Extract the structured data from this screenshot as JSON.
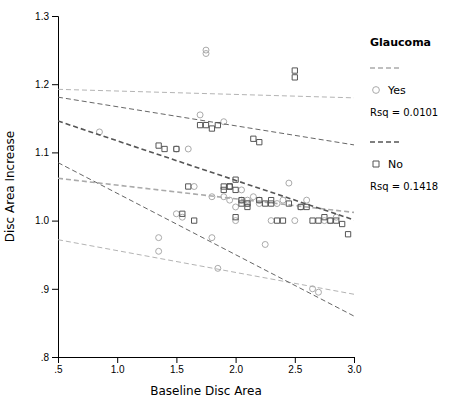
{
  "chart_data": {
    "type": "scatter",
    "xlabel": "Baseline Disc Area",
    "ylabel": "Disc Area Increase",
    "xlim": [
      0.5,
      3.0
    ],
    "ylim": [
      0.8,
      1.3
    ],
    "xticks": [
      {
        "value": 0.5,
        "label": ".5"
      },
      {
        "value": 1.0,
        "label": "1.0"
      },
      1.5,
      {
        "value": 2.0,
        "label": "2.0"
      },
      2.5,
      {
        "value": 3.0,
        "label": "3.0"
      }
    ],
    "yticks": [
      {
        "value": 0.8,
        "label": ".8"
      },
      {
        "value": 0.9,
        "label": ".9"
      },
      {
        "value": 1.0,
        "label": "1.0"
      },
      1.1,
      1.2,
      1.3
    ],
    "grid": false,
    "legend": "right",
    "legend_title": "Glaucoma",
    "series": [
      {
        "name": "Yes",
        "marker": "circle",
        "line_style": "dashed",
        "color": "#aaaaaa",
        "x": [
          0.85,
          1.35,
          1.35,
          1.5,
          1.5,
          1.55,
          1.6,
          1.65,
          1.7,
          1.75,
          1.75,
          1.8,
          1.8,
          1.85,
          1.9,
          1.9,
          1.95,
          1.95,
          2.0,
          2.0,
          2.05,
          2.05,
          2.1,
          2.1,
          2.15,
          2.2,
          2.2,
          2.25,
          2.3,
          2.35,
          2.4,
          2.45,
          2.5,
          2.55,
          2.6,
          2.65,
          2.7,
          2.75,
          2.8,
          2.85
        ],
        "values": [
          1.13,
          0.955,
          0.975,
          1.105,
          1.01,
          1.005,
          1.105,
          1.05,
          1.155,
          1.25,
          1.245,
          1.035,
          0.975,
          0.93,
          1.145,
          1.035,
          1.05,
          1.03,
          1.02,
          1.0,
          1.045,
          1.03,
          1.03,
          1.025,
          1.035,
          1.03,
          1.025,
          0.965,
          1.0,
          1.025,
          1.03,
          1.055,
          1.0,
          1.02,
          1.03,
          0.9,
          0.895,
          1.0,
          1.0,
          1.005
        ],
        "rsq_label": "Rsq = 0.0101",
        "fit": {
          "x": [
            0.5,
            3.0
          ],
          "values": [
            1.062,
            1.012
          ]
        },
        "ci_upper": {
          "x": [
            0.5,
            3.0
          ],
          "values": [
            1.1925,
            1.18
          ]
        },
        "ci_lower": {
          "x": [
            0.5,
            3.0
          ],
          "values": [
            0.972,
            0.892
          ]
        }
      },
      {
        "name": "No",
        "marker": "square",
        "line_style": "dashed",
        "color": "#555555",
        "x": [
          1.35,
          1.4,
          1.5,
          1.55,
          1.6,
          1.65,
          1.7,
          1.75,
          1.8,
          1.85,
          1.9,
          1.9,
          1.95,
          1.95,
          2.0,
          2.0,
          2.0,
          2.05,
          2.05,
          2.1,
          2.1,
          2.15,
          2.2,
          2.2,
          2.25,
          2.3,
          2.3,
          2.35,
          2.4,
          2.45,
          2.5,
          2.5,
          2.55,
          2.6,
          2.65,
          2.7,
          2.75,
          2.8,
          2.85,
          2.9,
          2.95
        ],
        "values": [
          1.11,
          1.105,
          1.105,
          1.01,
          1.05,
          1.0,
          1.14,
          1.14,
          1.135,
          1.14,
          1.045,
          1.05,
          1.05,
          1.05,
          1.06,
          1.045,
          1.005,
          1.03,
          1.025,
          1.025,
          1.02,
          1.12,
          1.115,
          1.03,
          1.025,
          1.03,
          1.025,
          1.0,
          1.0,
          1.025,
          1.22,
          1.21,
          1.02,
          1.02,
          1.0,
          1.0,
          1.005,
          1.0,
          1.0,
          0.995,
          0.98
        ],
        "rsq_label": "Rsq = 0.1418",
        "fit": {
          "x": [
            0.5,
            3.0
          ],
          "values": [
            1.146,
            1.001
          ]
        },
        "ci_upper": {
          "x": [
            0.5,
            3.0
          ],
          "values": [
            1.181,
            1.111
          ]
        },
        "ci_lower": {
          "x": [
            0.5,
            3.0
          ],
          "values": [
            1.085,
            0.86
          ]
        }
      }
    ]
  }
}
